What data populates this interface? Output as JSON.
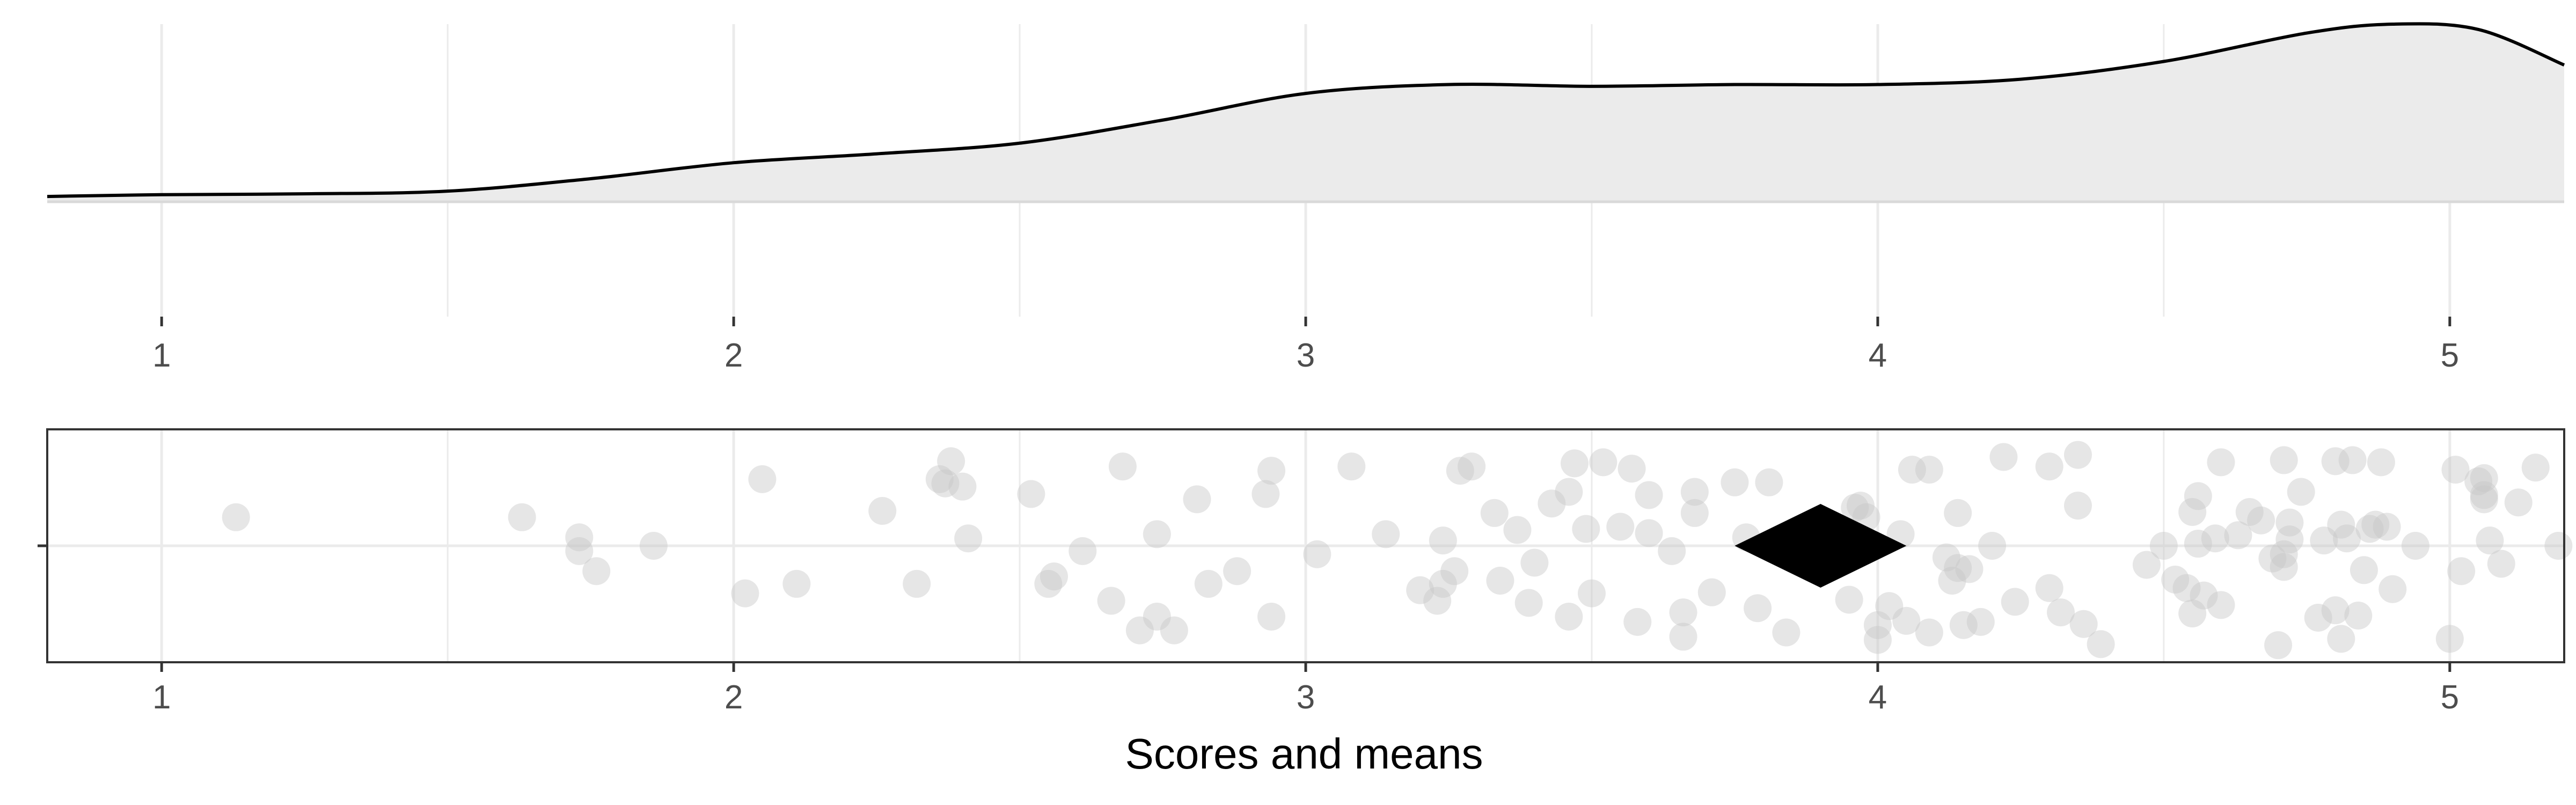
{
  "chart_data": [
    {
      "type": "area",
      "panel": "density",
      "title": "",
      "xlabel": "",
      "ylabel": "",
      "xlim": [
        0.8,
        5.2
      ],
      "ylim": [
        0,
        1.0
      ],
      "grid": true,
      "x_ticks": [
        1,
        2,
        3,
        4,
        5
      ],
      "tick_labels": [
        "1",
        "2",
        "3",
        "4",
        "5"
      ],
      "x": [
        0.8,
        1.0,
        1.25,
        1.5,
        1.75,
        2.0,
        2.25,
        2.5,
        2.75,
        3.0,
        3.25,
        3.5,
        3.75,
        4.0,
        4.25,
        4.5,
        4.75,
        4.9,
        5.05,
        5.2
      ],
      "values": [
        0.03,
        0.04,
        0.045,
        0.06,
        0.13,
        0.22,
        0.27,
        0.33,
        0.46,
        0.61,
        0.66,
        0.65,
        0.66,
        0.66,
        0.69,
        0.79,
        0.95,
        1.0,
        0.97,
        0.77
      ],
      "colors": {
        "fill": "#ebebeb",
        "line": "#000000",
        "grid": "#ebebeb"
      }
    },
    {
      "type": "scatter",
      "panel": "points",
      "title": "",
      "xlabel": "Scores and means",
      "ylabel": "",
      "xlim": [
        0.8,
        5.2
      ],
      "ylim": [
        -1,
        1
      ],
      "grid": true,
      "x_ticks": [
        1,
        2,
        3,
        4,
        5
      ],
      "tick_labels": [
        "1",
        "2",
        "3",
        "4",
        "5"
      ],
      "mean": {
        "x": 3.9,
        "y": 0
      },
      "points": [
        [
          1.13,
          0.27
        ],
        [
          1.63,
          0.27
        ],
        [
          1.73,
          0.08
        ],
        [
          1.73,
          -0.05
        ],
        [
          1.76,
          -0.24
        ],
        [
          1.86,
          0.0
        ],
        [
          2.02,
          -0.45
        ],
        [
          2.05,
          0.63
        ],
        [
          2.11,
          -0.36
        ],
        [
          2.26,
          0.33
        ],
        [
          2.32,
          -0.36
        ],
        [
          2.36,
          0.63
        ],
        [
          2.37,
          0.59
        ],
        [
          2.38,
          0.8
        ],
        [
          2.4,
          0.56
        ],
        [
          2.41,
          0.07
        ],
        [
          2.52,
          0.49
        ],
        [
          2.55,
          -0.36
        ],
        [
          2.56,
          -0.29
        ],
        [
          2.61,
          -0.05
        ],
        [
          2.66,
          -0.52
        ],
        [
          2.68,
          0.75
        ],
        [
          2.71,
          -0.8
        ],
        [
          2.74,
          0.11
        ],
        [
          2.74,
          -0.67
        ],
        [
          2.77,
          -0.8
        ],
        [
          2.81,
          0.44
        ],
        [
          2.83,
          -0.36
        ],
        [
          2.88,
          -0.24
        ],
        [
          2.93,
          0.49
        ],
        [
          2.94,
          -0.67
        ],
        [
          2.94,
          0.71
        ],
        [
          3.02,
          -0.08
        ],
        [
          3.08,
          0.75
        ],
        [
          3.14,
          0.11
        ],
        [
          3.2,
          -0.42
        ],
        [
          3.23,
          -0.52
        ],
        [
          3.24,
          -0.36
        ],
        [
          3.24,
          0.05
        ],
        [
          3.26,
          -0.24
        ],
        [
          3.27,
          0.71
        ],
        [
          3.29,
          0.75
        ],
        [
          3.33,
          0.31
        ],
        [
          3.34,
          -0.33
        ],
        [
          3.37,
          0.15
        ],
        [
          3.39,
          -0.54
        ],
        [
          3.4,
          -0.16
        ],
        [
          3.43,
          0.4
        ],
        [
          3.46,
          0.51
        ],
        [
          3.46,
          -0.67
        ],
        [
          3.47,
          0.78
        ],
        [
          3.49,
          0.16
        ],
        [
          3.5,
          -0.45
        ],
        [
          3.52,
          0.79
        ],
        [
          3.55,
          0.18
        ],
        [
          3.57,
          0.73
        ],
        [
          3.58,
          -0.72
        ],
        [
          3.6,
          0.48
        ],
        [
          3.6,
          0.12
        ],
        [
          3.64,
          -0.05
        ],
        [
          3.66,
          -0.86
        ],
        [
          3.66,
          -0.63
        ],
        [
          3.68,
          0.31
        ],
        [
          3.68,
          0.51
        ],
        [
          3.71,
          -0.44
        ],
        [
          3.75,
          0.6
        ],
        [
          3.77,
          0.08
        ],
        [
          3.79,
          -0.59
        ],
        [
          3.81,
          0.6
        ],
        [
          3.84,
          -0.82
        ],
        [
          3.95,
          -0.51
        ],
        [
          3.96,
          0.36
        ],
        [
          3.97,
          0.38
        ],
        [
          3.98,
          0.27
        ],
        [
          4.0,
          -0.75
        ],
        [
          4.0,
          -0.89
        ],
        [
          4.02,
          -0.57
        ],
        [
          4.04,
          0.11
        ],
        [
          4.05,
          -0.71
        ],
        [
          4.06,
          0.72
        ],
        [
          4.09,
          0.72
        ],
        [
          4.09,
          -0.82
        ],
        [
          4.12,
          -0.11
        ],
        [
          4.13,
          -0.33
        ],
        [
          4.14,
          0.31
        ],
        [
          4.14,
          -0.21
        ],
        [
          4.15,
          -0.75
        ],
        [
          4.16,
          -0.22
        ],
        [
          4.18,
          -0.72
        ],
        [
          4.2,
          0.0
        ],
        [
          4.22,
          0.84
        ],
        [
          4.24,
          -0.53
        ],
        [
          4.3,
          0.75
        ],
        [
          4.3,
          -0.4
        ],
        [
          4.32,
          -0.63
        ],
        [
          4.35,
          0.38
        ],
        [
          4.35,
          0.86
        ],
        [
          4.36,
          -0.74
        ],
        [
          4.39,
          -0.93
        ],
        [
          4.47,
          -0.18
        ],
        [
          4.5,
          0.0
        ],
        [
          4.52,
          -0.32
        ],
        [
          4.54,
          -0.4
        ],
        [
          4.55,
          -0.64
        ],
        [
          4.55,
          0.32
        ],
        [
          4.56,
          0.47
        ],
        [
          4.56,
          0.02
        ],
        [
          4.57,
          -0.47
        ],
        [
          4.59,
          0.07
        ],
        [
          4.6,
          -0.56
        ],
        [
          4.6,
          0.79
        ],
        [
          4.63,
          0.1
        ],
        [
          4.65,
          0.32
        ],
        [
          4.67,
          0.24
        ],
        [
          4.69,
          -0.12
        ],
        [
          4.7,
          -0.94
        ],
        [
          4.71,
          0.81
        ],
        [
          4.71,
          -0.08
        ],
        [
          4.71,
          -0.2
        ],
        [
          4.72,
          0.06
        ],
        [
          4.72,
          0.22
        ],
        [
          4.74,
          0.51
        ],
        [
          4.77,
          -0.68
        ],
        [
          4.78,
          0.05
        ],
        [
          4.8,
          0.8
        ],
        [
          4.8,
          -0.61
        ],
        [
          4.81,
          -0.88
        ],
        [
          4.81,
          0.2
        ],
        [
          4.82,
          0.07
        ],
        [
          4.83,
          0.81
        ],
        [
          4.84,
          -0.66
        ],
        [
          4.85,
          -0.23
        ],
        [
          4.86,
          0.16
        ],
        [
          4.87,
          0.2
        ],
        [
          4.88,
          0.79
        ],
        [
          4.89,
          0.18
        ],
        [
          4.9,
          -0.41
        ],
        [
          4.94,
          0.0
        ],
        [
          5.0,
          -0.88
        ],
        [
          5.01,
          0.72
        ],
        [
          5.02,
          -0.24
        ],
        [
          5.05,
          0.61
        ],
        [
          5.06,
          0.64
        ],
        [
          5.06,
          0.48
        ],
        [
          5.06,
          0.44
        ],
        [
          5.07,
          0.05
        ],
        [
          5.09,
          -0.17
        ],
        [
          5.12,
          0.41
        ],
        [
          5.15,
          0.74
        ],
        [
          5.19,
          0.0
        ]
      ],
      "colors": {
        "point": "#d9d9d9",
        "mean_marker": "#000000",
        "frame": "#333333",
        "grid": "#ebebeb"
      }
    }
  ]
}
